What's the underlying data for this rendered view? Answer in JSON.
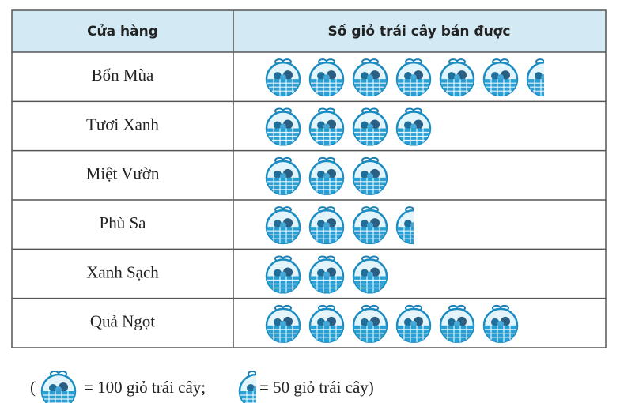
{
  "chart_data": {
    "type": "pictograph",
    "column_headers": [
      "Cửa hàng",
      "Số giỏ trái cây bán được"
    ],
    "categories": [
      "Bốn Mùa",
      "Tươi Xanh",
      "Miệt Vườn",
      "Phù Sa",
      "Xanh Sạch",
      "Quả Ngọt"
    ],
    "values": [
      650,
      400,
      300,
      350,
      300,
      600
    ],
    "color": "#2a9fd4",
    "key_open": "(",
    "key": [
      {
        "value": 100,
        "label": "= 100 giỏ trái cây;"
      },
      {
        "value": 50,
        "label": "= 50 giỏ trái cây)"
      }
    ]
  }
}
